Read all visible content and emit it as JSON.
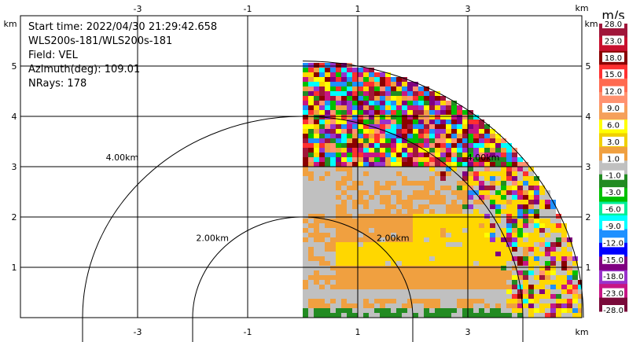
{
  "info": {
    "start_time": "Start time: 2022/04/30 21:29:42.658",
    "station": "WLS200s-181/WLS200s-181",
    "field": "Field: VEL",
    "azimuth": "Azimuth(deg): 109.01",
    "nrays": "NRays: 178"
  },
  "axes": {
    "unit": "km",
    "x_ticks": [
      "-3",
      "-1",
      "1",
      "3"
    ],
    "x_tick_values": [
      -3,
      -1,
      1,
      3
    ],
    "y_ticks": [
      "1",
      "2",
      "3",
      "4",
      "5"
    ],
    "y_tick_values": [
      1,
      2,
      3,
      4,
      5
    ],
    "x_range": [
      -5.0,
      5.0
    ],
    "y_range": [
      0.0,
      5.5
    ]
  },
  "range_rings": [
    {
      "label": "2.00km",
      "radius_km": 2.0
    },
    {
      "label": "4.00km",
      "radius_km": 4.0
    }
  ],
  "colorbar": {
    "unit": "m/s",
    "labels": [
      "28.0",
      "23.0",
      "18.0",
      "15.0",
      "12.0",
      "9.0",
      "6.0",
      "3.0",
      "1.0",
      "-1.0",
      "-3.0",
      "-6.0",
      "-9.0",
      "-12.0",
      "-15.0",
      "-18.0",
      "-23.0",
      "-28.0"
    ],
    "colors": [
      "#a0163a",
      "#c8102e",
      "#8b0000",
      "#ff3030",
      "#ff6a50",
      "#ff9270",
      "#f5a05a",
      "#ffff00",
      "#f0d000",
      "#f0a040",
      "#c0c0c0",
      "#228b22",
      "#00c000",
      "#00ee99",
      "#00ffff",
      "#1e90ff",
      "#0000ff",
      "#800080",
      "#9932cc",
      "#c71585",
      "#7a0a3a"
    ]
  },
  "scan": {
    "max_range_km": 5.1,
    "az_start_deg": 0,
    "az_end_deg": 90
  }
}
